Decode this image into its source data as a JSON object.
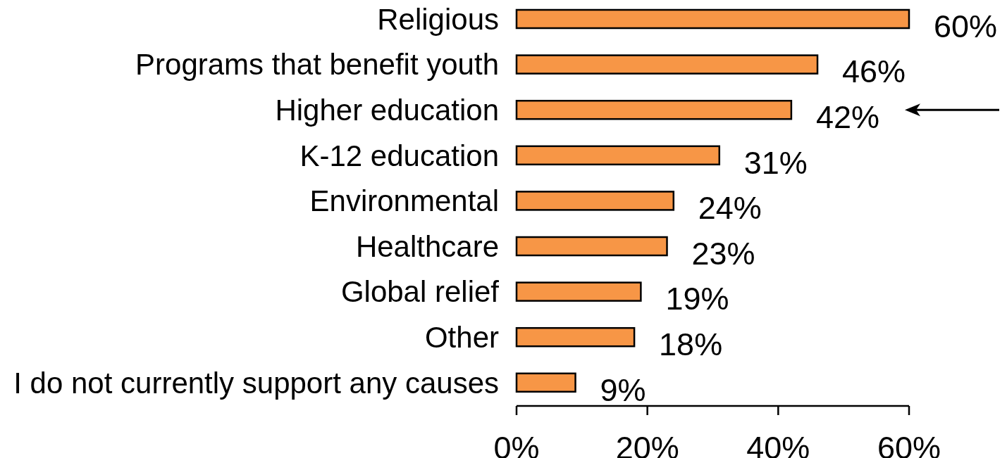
{
  "chart_data": {
    "type": "bar",
    "orientation": "horizontal",
    "categories": [
      "Religious",
      "Programs that benefit youth",
      "Higher education",
      "K-12 education",
      "Environmental",
      "Healthcare",
      "Global relief",
      "Other",
      "I do not currently support any causes"
    ],
    "values": [
      60,
      46,
      42,
      31,
      24,
      23,
      19,
      18,
      9
    ],
    "value_labels": [
      "60%",
      "46%",
      "42%",
      "31%",
      "24%",
      "23%",
      "19%",
      "18%",
      "9%"
    ],
    "color": "#f79646",
    "xlim": [
      0,
      60
    ],
    "xticks": [
      {
        "value": 0,
        "label": "0%"
      },
      {
        "value": 20,
        "label": "20%"
      },
      {
        "value": 40,
        "label": "40%"
      },
      {
        "value": 60,
        "label": "60%"
      }
    ],
    "grid": false
  }
}
